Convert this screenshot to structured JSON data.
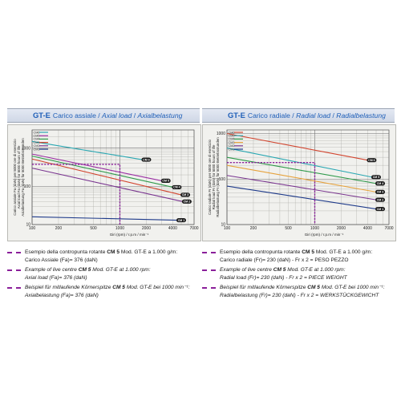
{
  "panels": [
    {
      "model": "GT-E",
      "title_it": "Carico assiale",
      "title_en": "Axial load",
      "title_de": "Axialbelastung",
      "ylabel_lines": [
        "Carico assiale Fa (daN) per 5000 ore di esercizio",
        "Axial load Fa (daN) for 5000 hours of life",
        "Axialbelastung Fa (daN) für 5000 Betriebsstunden"
      ],
      "xlabel": "Giri (rpm) / r.p.m / min⁻¹",
      "notes": [
        {
          "lang": "it",
          "l1_pre": "Esempio della contropunta rotante ",
          "l1_bold": "CM 5",
          "l1_post": " Mod. GT-E a 1.000 g/m:",
          "l2": "Carico Assiale (Fa)= 376 (daN)"
        },
        {
          "lang": "en",
          "l1_pre": "Example of live centre ",
          "l1_bold": "CM 5",
          "l1_post": " Mod. GT-E at 1.000 rpm:",
          "l2": "Axial load (Fa)= 376 (daN)"
        },
        {
          "lang": "de",
          "l1_pre": "Beispiel für mitlaufende Körnerspitze ",
          "l1_bold": "CM 5",
          "l1_post": " Mod. GT-E bei 1000 min⁻¹:",
          "l2": "Axialbelastung (Fa)= 376 (daN)"
        }
      ]
    },
    {
      "model": "GT-E",
      "title_it": "Carico radiale",
      "title_en": "Radial load",
      "title_de": "Radialbelastung",
      "ylabel_lines": [
        "Carico radiale Fr (daN) per 5000 ore di esercizio",
        "Radial load Fr (daN) for 5000 hours of life",
        "Radialbelastung Fr (daN) für 5000 Betriebsstunden"
      ],
      "xlabel": "Giri (rpm) / r.p.m / min⁻¹",
      "notes": [
        {
          "lang": "it",
          "l1_pre": "Esempio della contropunta rotante ",
          "l1_bold": "CM 5",
          "l1_post": " Mod. GT-E a 1.000 g/m:",
          "l2": "Carico radiale (Fr)= 230 (daN) - Fr x 2 = PESO PEZZO"
        },
        {
          "lang": "en",
          "l1_pre": "Example of live centre ",
          "l1_bold": "CM 5",
          "l1_post": " Mod. GT-E at 1.000 rpm:",
          "l2": "Radial load (Fr)= 230 (daN) - Fr x 2 = PIECE WEIGHT"
        },
        {
          "lang": "de",
          "l1_pre": "Beispiel für mitlaufende Körnerspitze ",
          "l1_bold": "CM 5",
          "l1_post": " Mod. GT-E bei 1000 min⁻¹:",
          "l2": "Radialbelastung (Fr)= 230 (daN) - Fr x 2 = WERKSTÜCKGEWICHT"
        }
      ]
    }
  ],
  "chart_data": [
    {
      "type": "line",
      "title": "GT-E Carico assiale / Axial load / Axialbelastung",
      "xlabel": "Giri (rpm) / r.p.m / min⁻¹",
      "ylabel": "Carico assiale Fa (daN) per 5000 ore di esercizio",
      "xscale": "log",
      "yscale": "log",
      "xlim": [
        100,
        7000
      ],
      "ylim": [
        10,
        3000
      ],
      "xticks": [
        100,
        200,
        500,
        1000,
        2000,
        4000,
        7000
      ],
      "yticks": [
        10,
        100,
        1000
      ],
      "grid": true,
      "legend": "top-left",
      "series": [
        {
          "name": "CM6",
          "color": "#2aa7b2",
          "x": [
            100,
            1800
          ],
          "y": [
            1500,
            500
          ]
        },
        {
          "name": "CM5",
          "color": "#9a2fa3",
          "x": [
            100,
            3000
          ],
          "y": [
            700,
            140
          ]
        },
        {
          "name": "CM4",
          "color": "#2e9a4a",
          "x": [
            100,
            4000
          ],
          "y": [
            620,
            95
          ]
        },
        {
          "name": "CM3",
          "color": "#d2452f",
          "x": [
            100,
            5000
          ],
          "y": [
            520,
            60
          ]
        },
        {
          "name": "CM2",
          "color": "#7a3690",
          "x": [
            100,
            5200
          ],
          "y": [
            300,
            40
          ]
        },
        {
          "name": "CM1",
          "color": "#1e3a8a",
          "x": [
            100,
            4500
          ],
          "y": [
            16,
            13
          ]
        }
      ],
      "series_labels": [
        "CM 6",
        "CM 5",
        "CM 4",
        "CM 3",
        "CM 2",
        "CM 1"
      ],
      "example": {
        "x": 1000,
        "y": 376,
        "label": "CM 5"
      }
    },
    {
      "type": "line",
      "title": "GT-E Carico radiale / Radial load / Radialbelastung",
      "xlabel": "Giri (rpm) / r.p.m / min⁻¹",
      "ylabel": "Carico radiale Fr (daN) per 5000 ore di esercizio",
      "xscale": "log",
      "yscale": "log",
      "xlim": [
        100,
        7000
      ],
      "ylim": [
        10,
        1200
      ],
      "xticks": [
        100,
        200,
        500,
        1000,
        2000,
        4000,
        7000
      ],
      "yticks": [
        10,
        100,
        1000
      ],
      "grid": true,
      "legend": "top-left",
      "series": [
        {
          "name": "CM6",
          "color": "#d2452f",
          "x": [
            100,
            4000
          ],
          "y": [
            1000,
            260
          ]
        },
        {
          "name": "CM5",
          "color": "#2aa7b2",
          "x": [
            100,
            4500
          ],
          "y": [
            480,
            110
          ]
        },
        {
          "name": "CM4",
          "color": "#2e9a4a",
          "x": [
            100,
            5000
          ],
          "y": [
            300,
            80
          ]
        },
        {
          "name": "CM3",
          "color": "#e6a23c",
          "x": [
            100,
            5000
          ],
          "y": [
            200,
            52
          ]
        },
        {
          "name": "CM2",
          "color": "#7a3690",
          "x": [
            100,
            5000
          ],
          "y": [
            120,
            35
          ]
        },
        {
          "name": "CM1",
          "color": "#1e3a8a",
          "x": [
            100,
            5000
          ],
          "y": [
            70,
            22
          ]
        }
      ],
      "series_labels": [
        "CM 6",
        "CM 5",
        "CM 4",
        "CM 3",
        "CM 2",
        "CM 1"
      ],
      "example": {
        "x": 1000,
        "y": 230,
        "label": "CM 5"
      }
    }
  ]
}
